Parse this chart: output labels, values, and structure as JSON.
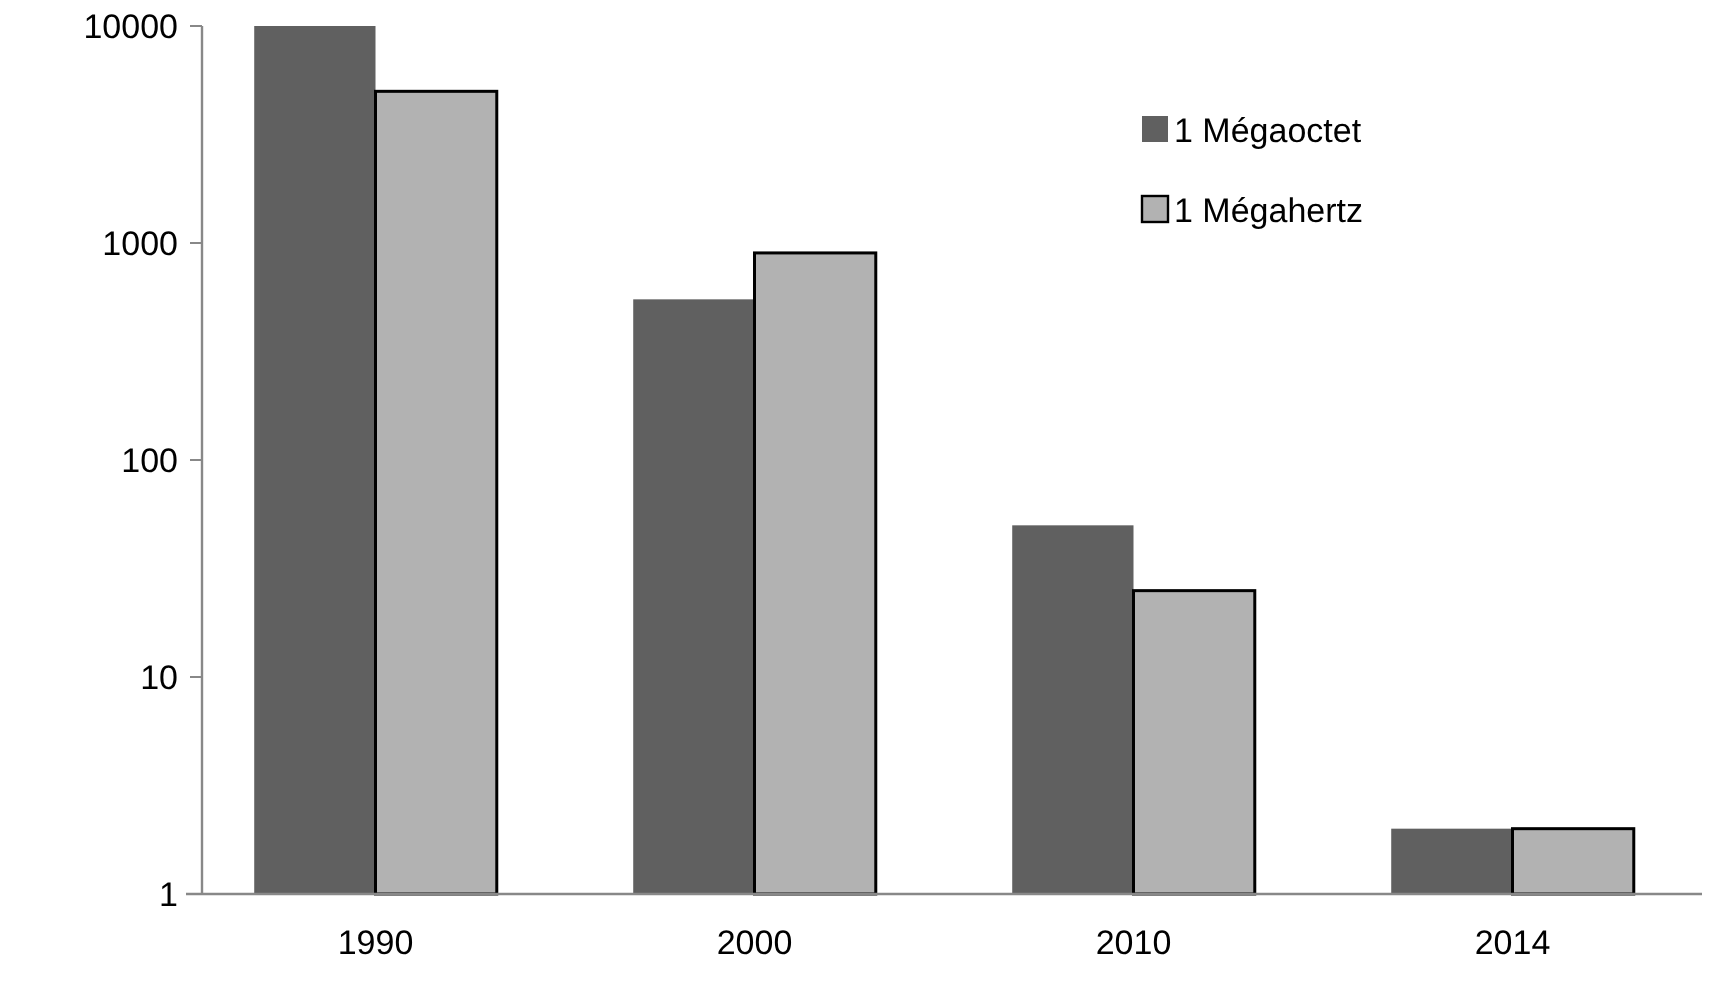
{
  "chart_data": {
    "type": "bar",
    "categories": [
      "1990",
      "2000",
      "2010",
      "2014"
    ],
    "series": [
      {
        "name": "1 Mégaoctet",
        "color": "#606060",
        "values": [
          10000,
          550,
          50,
          2
        ]
      },
      {
        "name": "1 Mégahertz",
        "color": "#b2b2b2",
        "values": [
          5000,
          900,
          25,
          2
        ]
      }
    ],
    "log": true,
    "ylim": [
      1,
      10000
    ],
    "yticks": [
      1,
      10,
      100,
      1000,
      10000
    ],
    "legend": "top right"
  }
}
